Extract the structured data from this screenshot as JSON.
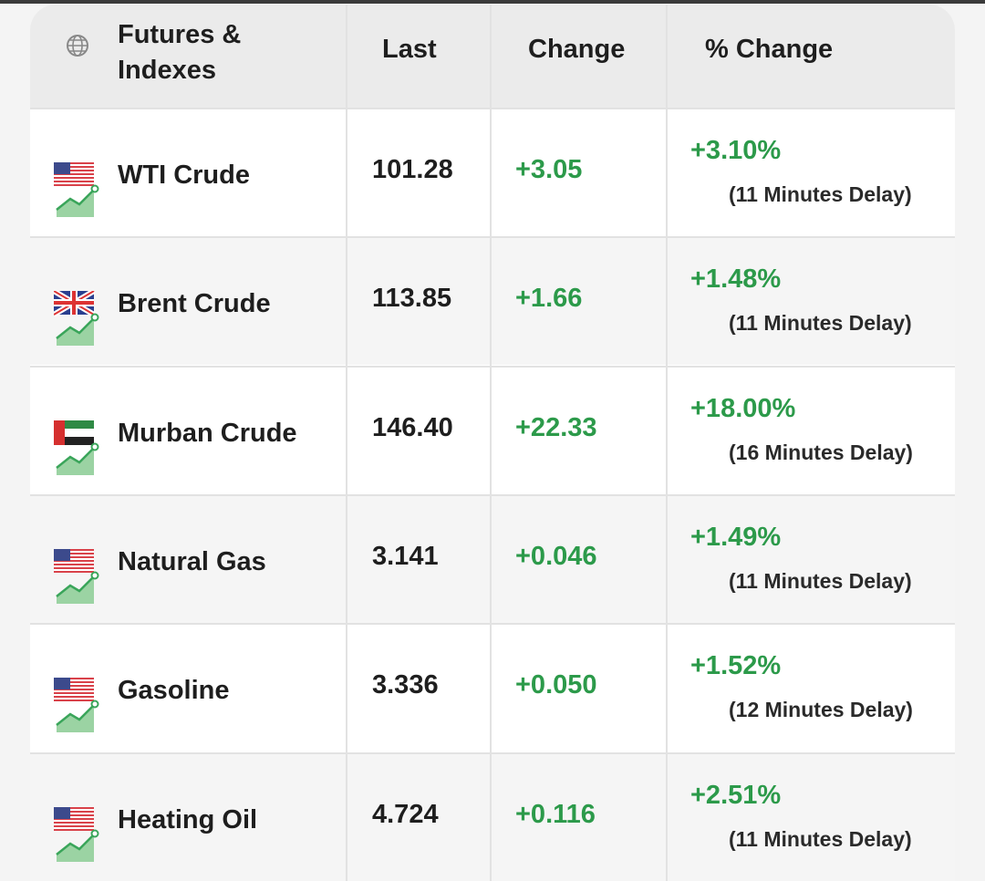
{
  "table": {
    "header": [
      "Futures & Indexes",
      "Last",
      "Change",
      "% Change"
    ],
    "rows": [
      {
        "name": "WTI Crude",
        "last": "101.28",
        "change": "+3.05",
        "pct_change": "+3.10%",
        "delay": "(11 Minutes Delay)"
      },
      {
        "name": "Brent Crude",
        "last": "113.85",
        "change": "+1.66",
        "pct_change": "+1.48%",
        "delay": "(11 Minutes Delay)"
      },
      {
        "name": "Murban Crude",
        "last": "146.40",
        "change": "+22.33",
        "pct_change": "+18.00%",
        "delay": "(16 Minutes Delay)"
      },
      {
        "name": "Natural Gas",
        "last": "3.141",
        "change": "+0.046",
        "pct_change": "+1.49%",
        "delay": "(11 Minutes Delay)"
      },
      {
        "name": "Gasoline",
        "last": "3.336",
        "change": "+0.050",
        "pct_change": "+1.52%",
        "delay": "(12 Minutes Delay)"
      },
      {
        "name": "Heating Oil",
        "last": "4.724",
        "change": "+0.116",
        "pct_change": "+2.51%",
        "delay": "(11 Minutes Delay)"
      }
    ]
  }
}
